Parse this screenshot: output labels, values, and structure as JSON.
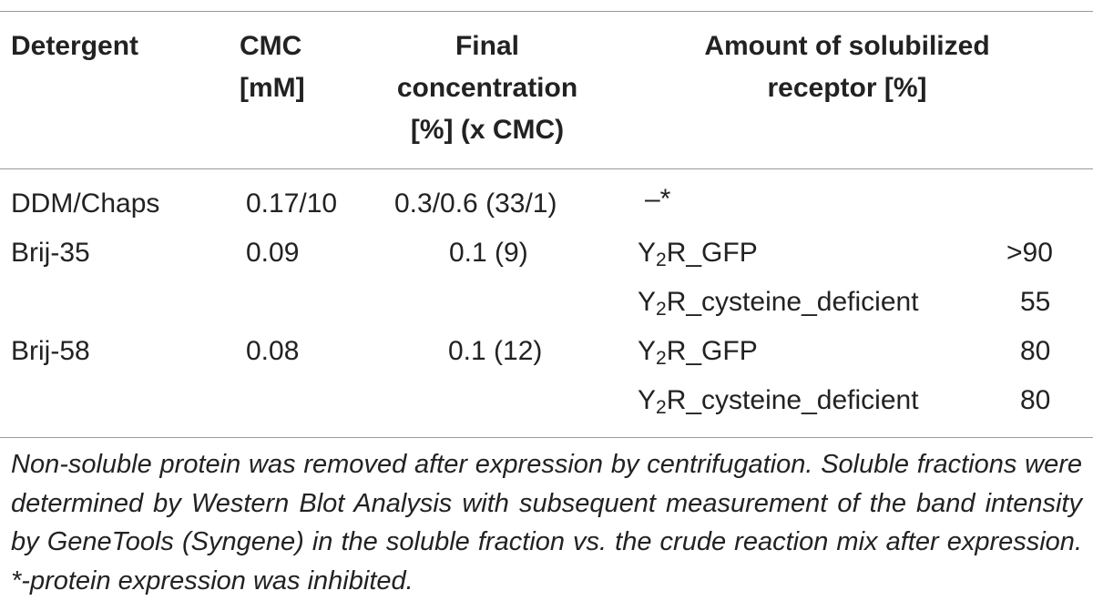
{
  "table": {
    "headers": {
      "detergent": "Detergent",
      "cmc_line1": "CMC",
      "cmc_line2": "[mM]",
      "final_line1": "Final",
      "final_line2": "concentration",
      "final_line3": "[%] (x CMC)",
      "amount_line1": "Amount of solubilized",
      "amount_line2": "receptor [%]"
    },
    "rows": [
      {
        "detergent": "DDM/Chaps",
        "cmc": "0.17/10",
        "final": "0.3/0.6 (33/1)",
        "receptors": [
          {
            "label": "–*",
            "amount": ""
          }
        ]
      },
      {
        "detergent": "Brij-35",
        "cmc": "0.09",
        "final": "0.1 (9)",
        "receptors": [
          {
            "prefix": "Y",
            "sub": "2",
            "suffix": "R_GFP",
            "amount": ">90"
          },
          {
            "prefix": "Y",
            "sub": "2",
            "suffix": "R_cysteine_deficient",
            "amount": "55"
          }
        ]
      },
      {
        "detergent": "Brij-58",
        "cmc": "0.08",
        "final": "0.1 (12)",
        "receptors": [
          {
            "prefix": "Y",
            "sub": "2",
            "suffix": "R_GFP",
            "amount": "80"
          },
          {
            "prefix": "Y",
            "sub": "2",
            "suffix": "R_cysteine_deficient",
            "amount": "80"
          }
        ]
      }
    ]
  },
  "footnote": "Non-soluble protein was removed after expression by centrifugation. Soluble fractions were determined by Western Blot Analysis with subsequent measurement of the band intensity by GeneTools (Syngene) in the soluble fraction vs. the crude reaction mix after expression. *-protein expression was inhibited."
}
